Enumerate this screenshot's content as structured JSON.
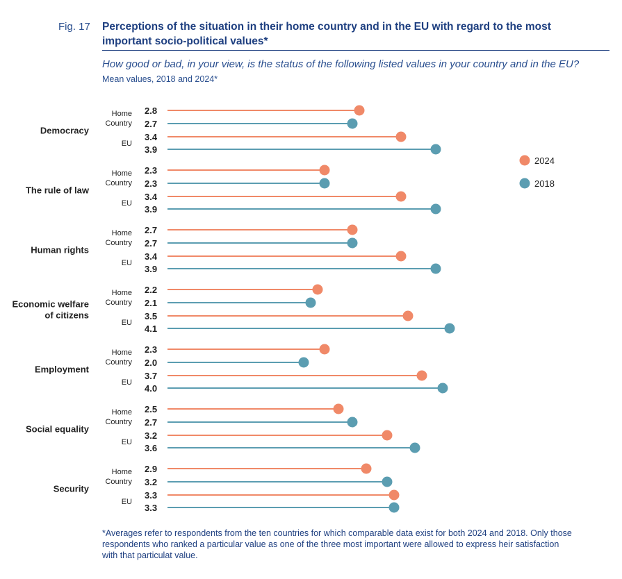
{
  "figure_label": "Fig. 17",
  "title": "Perceptions of the situation in their home country and in the EU with regard to the most important socio-political values*",
  "subtitle_question": "How good or bad, in your view, is the status of the following listed values in your country and in the EU?",
  "subtitle_note": "Mean values, 2018 and 2024*",
  "footnote": "*Averages refer to respondents from the ten countries for which comparable data exist for both 2024 and 2018. Only those respondents who ranked a particular value as one of the three most important were allowed to express heir satisfaction with that particulat value.",
  "chart_data": {
    "type": "lollipop",
    "row_labels": [
      "Home Country",
      "EU"
    ],
    "legend": [
      {
        "name": "2024",
        "color": "#f08968"
      },
      {
        "name": "2018",
        "color": "#5b9db1"
      }
    ],
    "legend_position": "right",
    "categories": [
      "Democracy",
      "The rule of law",
      "Human rights",
      "Economic welfare of citizens",
      "Employment",
      "Social equality",
      "Security"
    ],
    "series": [
      {
        "name": "2024",
        "home_country": [
          2.8,
          2.3,
          2.7,
          2.2,
          2.3,
          2.5,
          2.9
        ],
        "eu": [
          3.4,
          3.4,
          3.4,
          3.5,
          3.7,
          3.2,
          3.3
        ]
      },
      {
        "name": "2018",
        "home_country": [
          2.7,
          2.3,
          2.7,
          2.1,
          2.0,
          2.7,
          3.2
        ],
        "eu": [
          3.9,
          3.9,
          3.9,
          4.1,
          4.0,
          3.6,
          3.3
        ]
      }
    ],
    "grid": false
  }
}
